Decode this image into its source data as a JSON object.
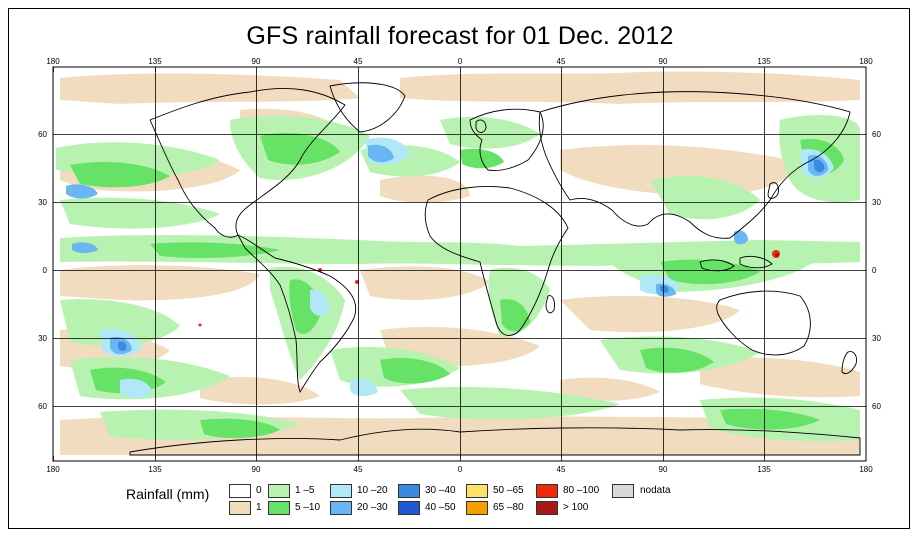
{
  "title": "GFS rainfall forecast for 01 Dec. 2012",
  "lon_labels": [
    "180",
    "135",
    "90",
    "45",
    "0",
    "45",
    "90",
    "135",
    "180"
  ],
  "lat_labels": [
    "60",
    "30",
    "0",
    "30",
    "60"
  ],
  "legend": {
    "title": "Rainfall (mm)",
    "items": [
      {
        "label": "0",
        "color": "#ffffff"
      },
      {
        "label": "1",
        "color": "#f2dcc0"
      },
      {
        "label": "1 –5",
        "color": "#b8f2b0"
      },
      {
        "label": "5 –10",
        "color": "#66e266"
      },
      {
        "label": "10 –20",
        "color": "#b0e8f8"
      },
      {
        "label": "20 –30",
        "color": "#6ab6f2"
      },
      {
        "label": "30 –40",
        "color": "#3a8be0"
      },
      {
        "label": "40 –50",
        "color": "#1f5ad2"
      },
      {
        "label": "50 –65",
        "color": "#fde26a"
      },
      {
        "label": "65 –80",
        "color": "#f5a000"
      },
      {
        "label": "80 –100",
        "color": "#ee2a0a"
      },
      {
        "label": "> 100",
        "color": "#a81818"
      },
      {
        "label": "nodata",
        "color": "#d8d8d8"
      }
    ]
  }
}
